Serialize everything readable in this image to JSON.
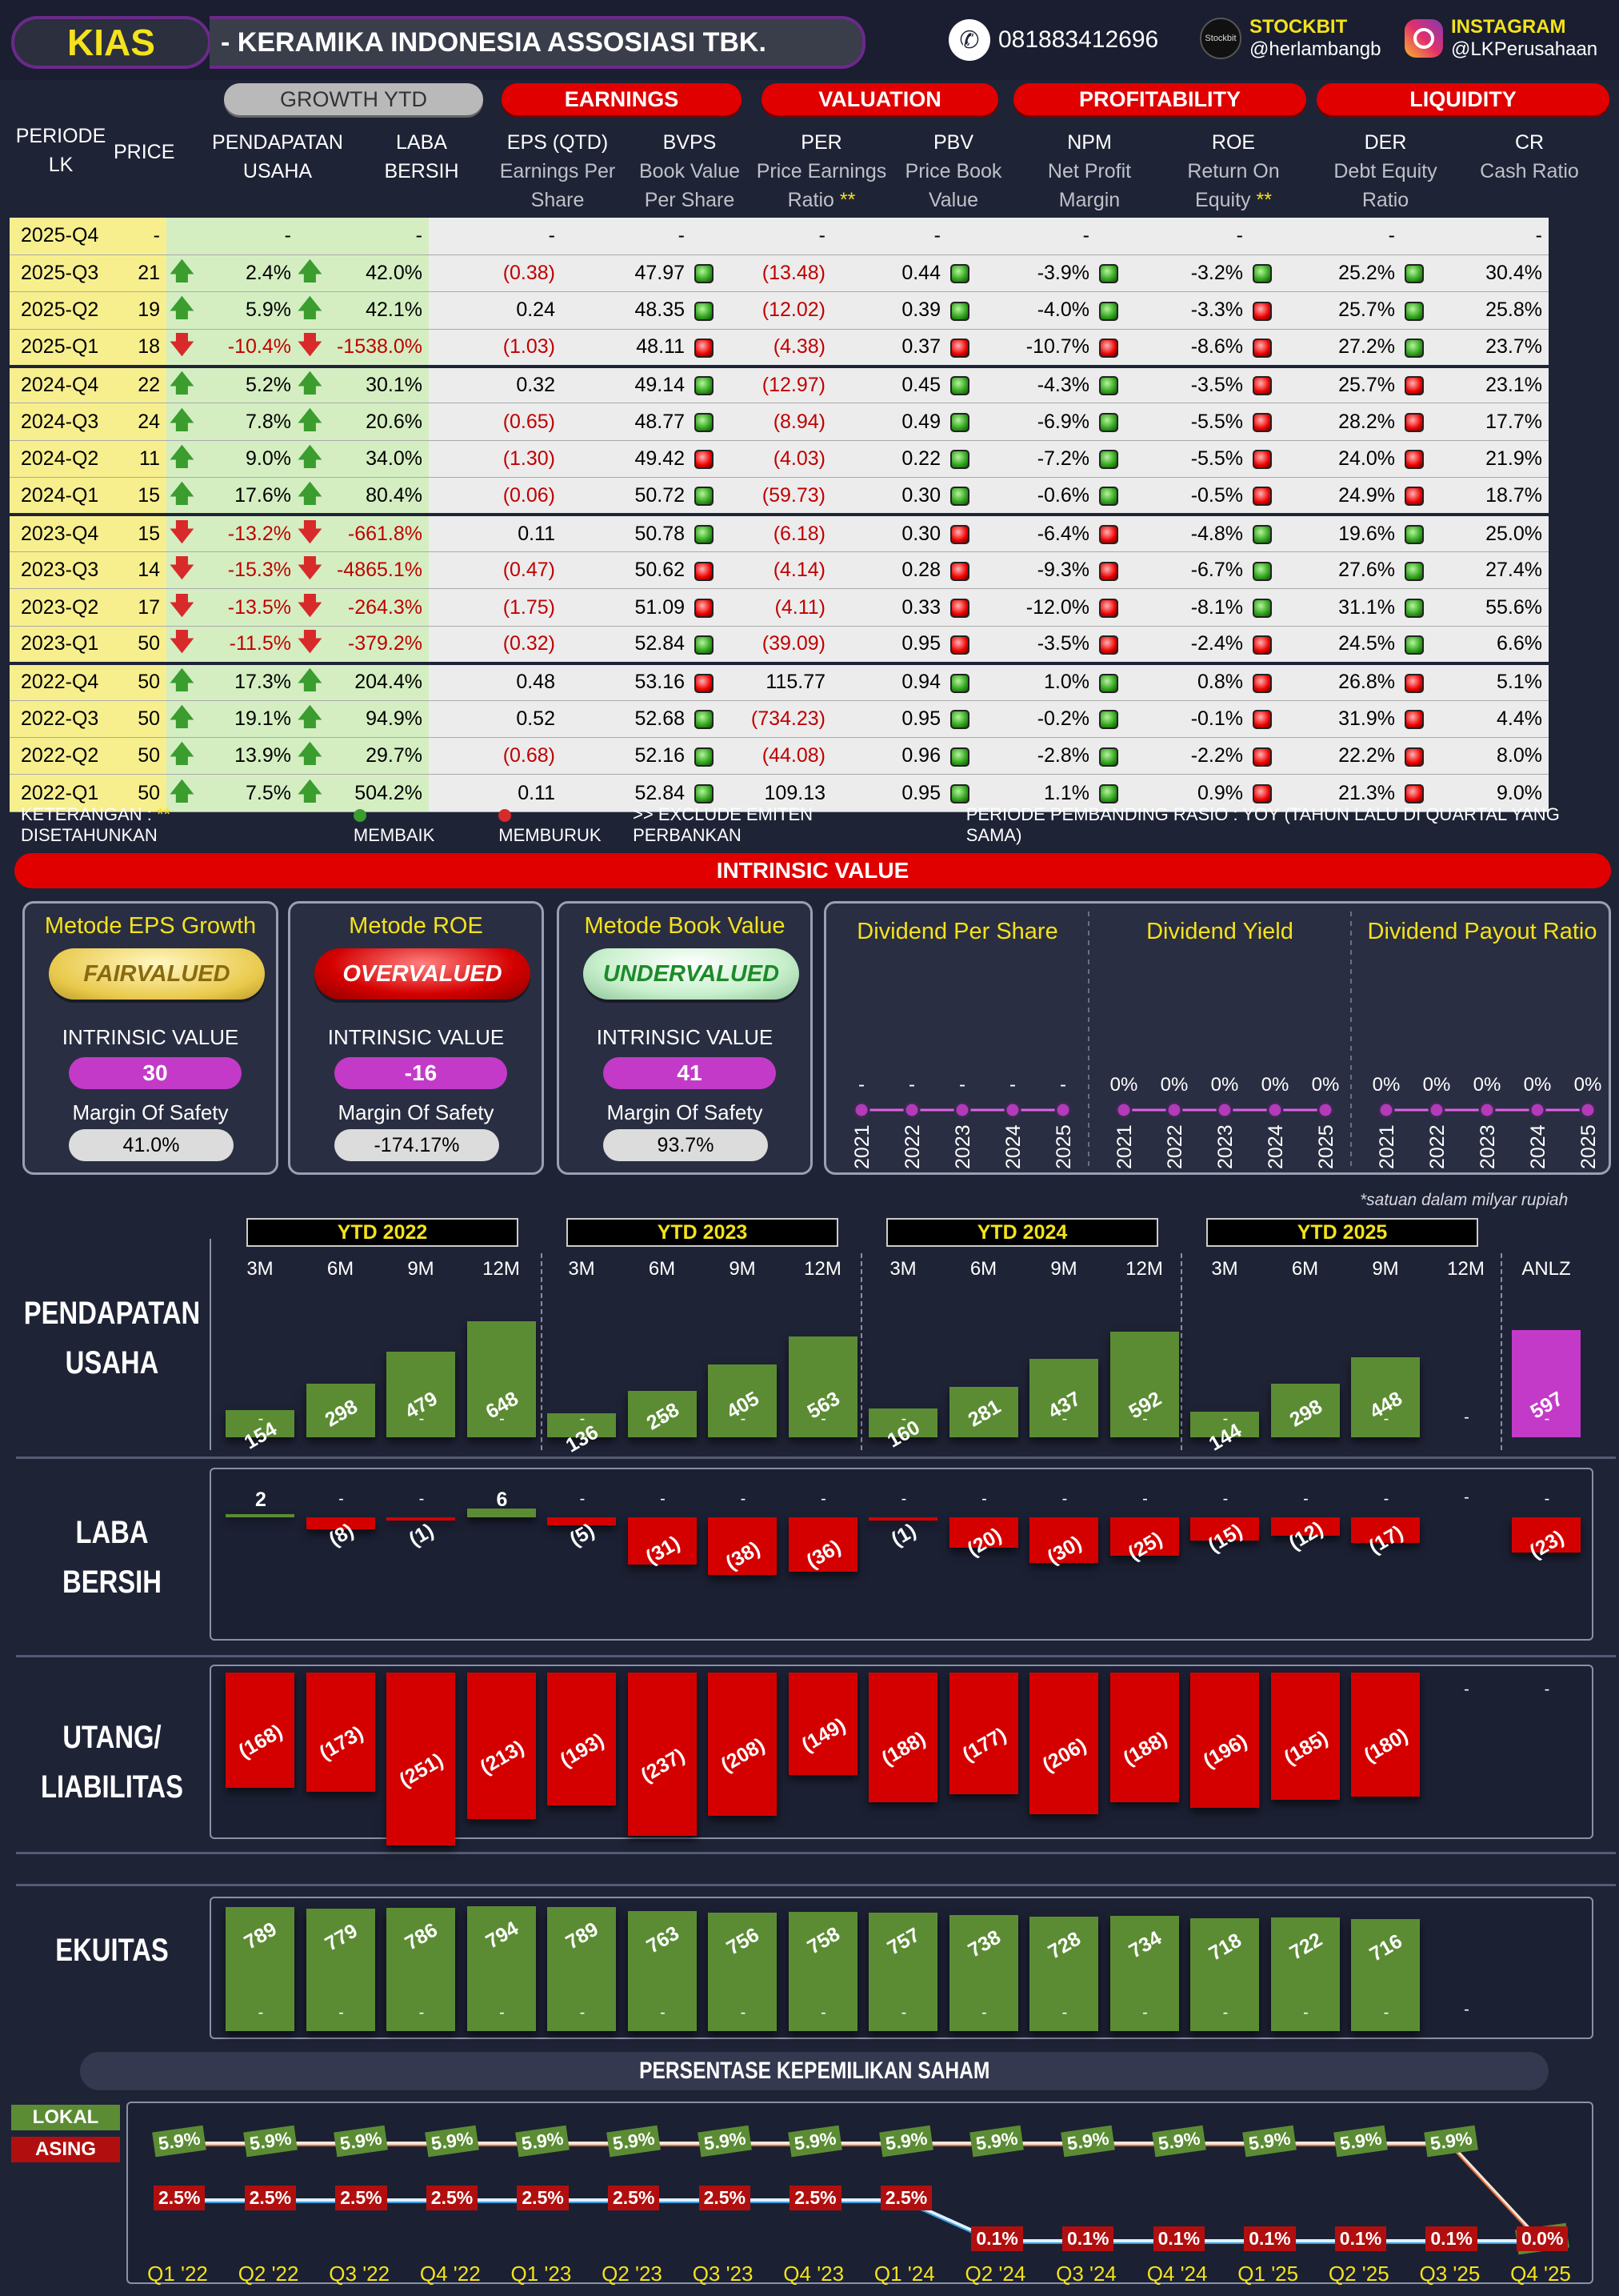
{
  "header": {
    "ticker": "KIAS",
    "company": "-  KERAMIKA INDONESIA ASSOSIASI TBK.",
    "phone": "081883412696",
    "stockbit_label": "STOCKBIT",
    "stockbit_handle": "@herlambangb",
    "stockbit_logo": "Stockbit",
    "instagram_label": "INSTAGRAM",
    "instagram_handle": "@LKPerusahaan"
  },
  "groups": {
    "growth": "GROWTH YTD",
    "earnings": "EARNINGS",
    "valuation": "VALUATION",
    "profitability": "PROFITABILITY",
    "liquidity": "LIQUIDITY"
  },
  "columns": {
    "periode": "PERIODE\nLK",
    "price": "PRICE",
    "pendapatan": "PENDAPATAN\nUSAHA",
    "laba": "LABA\nBERSIH",
    "eps": "EPS (QTD)",
    "eps_sub": "Earnings Per\nShare",
    "bvps": "BVPS",
    "bvps_sub": "Book Value\nPer Share",
    "per": "PER",
    "per_sub": "Price Earnings\nRatio",
    "pbv": "PBV",
    "pbv_sub": "Price Book\nValue",
    "npm": "NPM",
    "npm_sub": "Net Profit\nMargin",
    "roe": "ROE",
    "roe_sub": "Return On\nEquity",
    "der": "DER",
    "der_sub": "Debt Equity\nRatio",
    "cr": "CR",
    "cr_sub": "Cash Ratio",
    "stars": "**"
  },
  "rows": [
    {
      "p": "2025-Q4",
      "price": "-",
      "rev": "-",
      "revd": "",
      "ni": "-",
      "nid": "",
      "eps": "-",
      "bvps": "-",
      "per": "-",
      "perd": "",
      "pbv": "-",
      "npm": "-",
      "npmd": "",
      "roe": "-",
      "roed": "",
      "der": "-",
      "derd": "",
      "cr": "-",
      "crd": ""
    },
    {
      "p": "2025-Q3",
      "price": "21",
      "rev": "2.4%",
      "revd": "up",
      "ni": "42.0%",
      "nid": "up",
      "eps": "(0.38)",
      "bvps": "47.97",
      "per": "(13.48)",
      "perd": "g",
      "pbv": "0.44",
      "npm": "-3.9%",
      "npmd": "g",
      "roe": "-3.2%",
      "roed": "g",
      "der": "25.2%",
      "derd": "g",
      "cr": "30.4%",
      "crd": "g"
    },
    {
      "p": "2025-Q2",
      "price": "19",
      "rev": "5.9%",
      "revd": "up",
      "ni": "42.1%",
      "nid": "up",
      "eps": "0.24",
      "bvps": "48.35",
      "per": "(12.02)",
      "perd": "g",
      "pbv": "0.39",
      "npm": "-4.0%",
      "npmd": "g",
      "roe": "-3.3%",
      "roed": "g",
      "der": "25.7%",
      "derd": "r",
      "cr": "25.8%",
      "crd": "g"
    },
    {
      "p": "2025-Q1",
      "price": "18",
      "rev": "-10.4%",
      "revd": "dn",
      "ni": "-1538.0%",
      "nid": "dn",
      "eps": "(1.03)",
      "bvps": "48.11",
      "per": "(4.38)",
      "perd": "r",
      "pbv": "0.37",
      "npm": "-10.7%",
      "npmd": "r",
      "roe": "-8.6%",
      "roed": "r",
      "der": "27.2%",
      "derd": "r",
      "cr": "23.7%",
      "crd": "g"
    },
    {
      "p": "2024-Q4",
      "price": "22",
      "rev": "5.2%",
      "revd": "up",
      "ni": "30.1%",
      "nid": "up",
      "eps": "0.32",
      "bvps": "49.14",
      "per": "(12.97)",
      "perd": "g",
      "pbv": "0.45",
      "npm": "-4.3%",
      "npmd": "g",
      "roe": "-3.5%",
      "roed": "g",
      "der": "25.7%",
      "derd": "r",
      "cr": "23.1%",
      "crd": "r"
    },
    {
      "p": "2024-Q3",
      "price": "24",
      "rev": "7.8%",
      "revd": "up",
      "ni": "20.6%",
      "nid": "up",
      "eps": "(0.65)",
      "bvps": "48.77",
      "per": "(8.94)",
      "perd": "g",
      "pbv": "0.49",
      "npm": "-6.9%",
      "npmd": "g",
      "roe": "-5.5%",
      "roed": "g",
      "der": "28.2%",
      "derd": "r",
      "cr": "17.7%",
      "crd": "r"
    },
    {
      "p": "2024-Q2",
      "price": "11",
      "rev": "9.0%",
      "revd": "up",
      "ni": "34.0%",
      "nid": "up",
      "eps": "(1.30)",
      "bvps": "49.42",
      "per": "(4.03)",
      "perd": "r",
      "pbv": "0.22",
      "npm": "-7.2%",
      "npmd": "g",
      "roe": "-5.5%",
      "roed": "g",
      "der": "24.0%",
      "derd": "r",
      "cr": "21.9%",
      "crd": "r"
    },
    {
      "p": "2024-Q1",
      "price": "15",
      "rev": "17.6%",
      "revd": "up",
      "ni": "80.4%",
      "nid": "up",
      "eps": "(0.06)",
      "bvps": "50.72",
      "per": "(59.73)",
      "perd": "g",
      "pbv": "0.30",
      "npm": "-0.6%",
      "npmd": "g",
      "roe": "-0.5%",
      "roed": "g",
      "der": "24.9%",
      "derd": "r",
      "cr": "18.7%",
      "crd": "r"
    },
    {
      "p": "2023-Q4",
      "price": "15",
      "rev": "-13.2%",
      "revd": "dn",
      "ni": "-661.8%",
      "nid": "dn",
      "eps": "0.11",
      "bvps": "50.78",
      "per": "(6.18)",
      "perd": "g",
      "pbv": "0.30",
      "npm": "-6.4%",
      "npmd": "r",
      "roe": "-4.8%",
      "roed": "r",
      "der": "19.6%",
      "derd": "g",
      "cr": "25.0%",
      "crd": "g"
    },
    {
      "p": "2023-Q3",
      "price": "14",
      "rev": "-15.3%",
      "revd": "dn",
      "ni": "-4865.1%",
      "nid": "dn",
      "eps": "(0.47)",
      "bvps": "50.62",
      "per": "(4.14)",
      "perd": "r",
      "pbv": "0.28",
      "npm": "-9.3%",
      "npmd": "r",
      "roe": "-6.7%",
      "roed": "r",
      "der": "27.6%",
      "derd": "g",
      "cr": "27.4%",
      "crd": "g"
    },
    {
      "p": "2023-Q2",
      "price": "17",
      "rev": "-13.5%",
      "revd": "dn",
      "ni": "-264.3%",
      "nid": "dn",
      "eps": "(1.75)",
      "bvps": "51.09",
      "per": "(4.11)",
      "perd": "r",
      "pbv": "0.33",
      "npm": "-12.0%",
      "npmd": "r",
      "roe": "-8.1%",
      "roed": "r",
      "der": "31.1%",
      "derd": "g",
      "cr": "55.6%",
      "crd": "g"
    },
    {
      "p": "2023-Q1",
      "price": "50",
      "rev": "-11.5%",
      "revd": "dn",
      "ni": "-379.2%",
      "nid": "dn",
      "eps": "(0.32)",
      "bvps": "52.84",
      "per": "(39.09)",
      "perd": "g",
      "pbv": "0.95",
      "npm": "-3.5%",
      "npmd": "r",
      "roe": "-2.4%",
      "roed": "r",
      "der": "24.5%",
      "derd": "r",
      "cr": "6.6%",
      "crd": "g"
    },
    {
      "p": "2022-Q4",
      "price": "50",
      "rev": "17.3%",
      "revd": "up",
      "ni": "204.4%",
      "nid": "up",
      "eps": "0.48",
      "bvps": "53.16",
      "per": "115.77",
      "perd": "r",
      "pbv": "0.94",
      "npm": "1.0%",
      "npmd": "g",
      "roe": "0.8%",
      "roed": "g",
      "der": "26.8%",
      "derd": "r",
      "cr": "5.1%",
      "crd": "r"
    },
    {
      "p": "2022-Q3",
      "price": "50",
      "rev": "19.1%",
      "revd": "up",
      "ni": "94.9%",
      "nid": "up",
      "eps": "0.52",
      "bvps": "52.68",
      "per": "(734.23)",
      "perd": "g",
      "pbv": "0.95",
      "npm": "-0.2%",
      "npmd": "g",
      "roe": "-0.1%",
      "roed": "g",
      "der": "31.9%",
      "derd": "r",
      "cr": "4.4%",
      "crd": "r"
    },
    {
      "p": "2022-Q2",
      "price": "50",
      "rev": "13.9%",
      "revd": "up",
      "ni": "29.7%",
      "nid": "up",
      "eps": "(0.68)",
      "bvps": "52.16",
      "per": "(44.08)",
      "perd": "g",
      "pbv": "0.96",
      "npm": "-2.8%",
      "npmd": "g",
      "roe": "-2.2%",
      "roed": "g",
      "der": "22.2%",
      "derd": "r",
      "cr": "8.0%",
      "crd": "r"
    },
    {
      "p": "2022-Q1",
      "price": "50",
      "rev": "7.5%",
      "revd": "up",
      "ni": "504.2%",
      "nid": "up",
      "eps": "0.11",
      "bvps": "52.84",
      "per": "109.13",
      "perd": "g",
      "pbv": "0.95",
      "npm": "1.1%",
      "npmd": "g",
      "roe": "0.9%",
      "roed": "g",
      "der": "21.3%",
      "derd": "r",
      "cr": "9.0%",
      "crd": "r"
    }
  ],
  "legend": {
    "ket": "KETERANGAN :",
    "stars": "**",
    "disetahunkan": "DISETAHUNKAN",
    "membaik": "MEMBAIK",
    "memburuk": "MEMBURUK",
    "exclude": ">> EXCLUDE EMITEN PERBANKAN",
    "periode": "PERIODE PEMBANDING RASIO : YOY (TAHUN LALU DI QUARTAL YANG SAMA)",
    "good_color": "#3a9d2e",
    "bad_color": "#d82a2a"
  },
  "intrinsic": {
    "title": "INTRINSIC VALUE",
    "iv_label": "INTRINSIC VALUE",
    "mos_label": "Margin Of Safety",
    "methods": [
      {
        "name": "Metode EPS Growth",
        "status": "FAIRVALUED",
        "value": "30",
        "mos": "41.0%"
      },
      {
        "name": "Metode ROE",
        "status": "OVERVALUED",
        "value": "-16",
        "mos": "-174.17%"
      },
      {
        "name": "Metode Book Value",
        "status": "UNDERVALUED",
        "value": "41",
        "mos": "93.7%"
      }
    ]
  },
  "dividends": {
    "years": [
      "2021",
      "2022",
      "2023",
      "2024",
      "2025"
    ],
    "dps": {
      "title": "Dividend Per Share",
      "values": [
        "-",
        "-",
        "-",
        "-",
        "-"
      ]
    },
    "yield": {
      "title": "Dividend Yield",
      "values": [
        "0%",
        "0%",
        "0%",
        "0%",
        "0%"
      ]
    },
    "payout": {
      "title": "Dividend Payout Ratio",
      "values": [
        "0%",
        "0%",
        "0%",
        "0%",
        "0%"
      ]
    }
  },
  "financials": {
    "note": "*satuan dalam milyar rupiah",
    "ytd": [
      "YTD 2022",
      "YTD 2023",
      "YTD 2024",
      "YTD 2025"
    ],
    "months": [
      "3M",
      "6M",
      "9M",
      "12M",
      "3M",
      "6M",
      "9M",
      "12M",
      "3M",
      "6M",
      "9M",
      "12M",
      "3M",
      "6M",
      "9M",
      "12M",
      "ANLZ"
    ],
    "rev_label": "PENDAPATAN\nUSAHA",
    "ni_label": "LABA\nBERSIH",
    "liab_label": "UTANG/\nLIABILITAS",
    "eq_label": "EKUITAS"
  },
  "chart_data": [
    {
      "type": "bar",
      "title": "PENDAPATAN USAHA",
      "categories": [
        "3M '22",
        "6M '22",
        "9M '22",
        "12M '22",
        "3M '23",
        "6M '23",
        "9M '23",
        "12M '23",
        "3M '24",
        "6M '24",
        "9M '24",
        "12M '24",
        "3M '25",
        "6M '25",
        "9M '25",
        "12M '25",
        "ANLZ"
      ],
      "values": [
        154,
        298,
        479,
        648,
        136,
        258,
        405,
        563,
        160,
        281,
        437,
        592,
        144,
        298,
        448,
        null,
        597
      ],
      "labels": [
        "154",
        "298",
        "479",
        "648",
        "136",
        "258",
        "405",
        "563",
        "160",
        "281",
        "437",
        "592",
        "144",
        "298",
        "448",
        "-",
        "597"
      ]
    },
    {
      "type": "bar",
      "title": "LABA BERSIH",
      "categories": [
        "3M '22",
        "6M '22",
        "9M '22",
        "12M '22",
        "3M '23",
        "6M '23",
        "9M '23",
        "12M '23",
        "3M '24",
        "6M '24",
        "9M '24",
        "12M '24",
        "3M '25",
        "6M '25",
        "9M '25",
        "12M '25",
        "ANLZ"
      ],
      "values": [
        2,
        -8,
        -1,
        6,
        -5,
        -31,
        -38,
        -36,
        -1,
        -20,
        -30,
        -25,
        -15,
        -12,
        -17,
        null,
        -23
      ],
      "labels": [
        "2",
        "(8)",
        "(1)",
        "6",
        "(5)",
        "(31)",
        "(38)",
        "(36)",
        "(1)",
        "(20)",
        "(30)",
        "(25)",
        "(15)",
        "(12)",
        "(17)",
        "-",
        "(23)"
      ]
    },
    {
      "type": "bar",
      "title": "UTANG/ LIABILITAS",
      "categories": [
        "3M '22",
        "6M '22",
        "9M '22",
        "12M '22",
        "3M '23",
        "6M '23",
        "9M '23",
        "12M '23",
        "3M '24",
        "6M '24",
        "9M '24",
        "12M '24",
        "3M '25",
        "6M '25",
        "9M '25",
        "12M '25",
        "ANLZ"
      ],
      "values": [
        -168,
        -173,
        -251,
        -213,
        -193,
        -237,
        -208,
        -149,
        -188,
        -177,
        -206,
        -188,
        -196,
        -185,
        -180,
        null,
        null
      ],
      "labels": [
        "(168)",
        "(173)",
        "(251)",
        "(213)",
        "(193)",
        "(237)",
        "(208)",
        "(149)",
        "(188)",
        "(177)",
        "(206)",
        "(188)",
        "(196)",
        "(185)",
        "(180)",
        "-",
        "-"
      ]
    },
    {
      "type": "bar",
      "title": "EKUITAS",
      "categories": [
        "3M '22",
        "6M '22",
        "9M '22",
        "12M '22",
        "3M '23",
        "6M '23",
        "9M '23",
        "12M '23",
        "3M '24",
        "6M '24",
        "9M '24",
        "12M '24",
        "3M '25",
        "6M '25",
        "9M '25",
        "12M '25"
      ],
      "values": [
        789,
        779,
        786,
        794,
        789,
        763,
        756,
        758,
        757,
        738,
        728,
        734,
        718,
        722,
        716,
        null
      ],
      "labels": [
        "789",
        "779",
        "786",
        "794",
        "789",
        "763",
        "756",
        "758",
        "757",
        "738",
        "728",
        "734",
        "718",
        "722",
        "716",
        "-"
      ]
    },
    {
      "type": "line",
      "title": "PERSENTASE KEPEMILIKAN SAHAM",
      "categories": [
        "Q1 '22",
        "Q2 '22",
        "Q3 '22",
        "Q4 '22",
        "Q1 '23",
        "Q2 '23",
        "Q3 '23",
        "Q4 '23",
        "Q1 '24",
        "Q2 '24",
        "Q3 '24",
        "Q4 '24",
        "Q1 '25",
        "Q2 '25",
        "Q3 '25",
        "Q4 '25"
      ],
      "series": [
        {
          "name": "LOKAL",
          "values": [
            5.9,
            5.9,
            5.9,
            5.9,
            5.9,
            5.9,
            5.9,
            5.9,
            5.9,
            5.9,
            5.9,
            5.9,
            5.9,
            5.9,
            5.9,
            0.0
          ],
          "labels": [
            "5.9%",
            "5.9%",
            "5.9%",
            "5.9%",
            "5.9%",
            "5.9%",
            "5.9%",
            "5.9%",
            "5.9%",
            "5.9%",
            "5.9%",
            "5.9%",
            "5.9%",
            "5.9%",
            "5.9%",
            "0.0%"
          ],
          "color": "#5b8c34"
        },
        {
          "name": "ASING",
          "values": [
            2.5,
            2.5,
            2.5,
            2.5,
            2.5,
            2.5,
            2.5,
            2.5,
            2.5,
            0.1,
            0.1,
            0.1,
            0.1,
            0.1,
            0.1,
            0.0
          ],
          "labels": [
            "2.5%",
            "2.5%",
            "2.5%",
            "2.5%",
            "2.5%",
            "2.5%",
            "2.5%",
            "2.5%",
            "2.5%",
            "0.1%",
            "0.1%",
            "0.1%",
            "0.1%",
            "0.1%",
            "0.1%",
            "0.0%"
          ],
          "color": "#b10f0f"
        }
      ]
    }
  ]
}
